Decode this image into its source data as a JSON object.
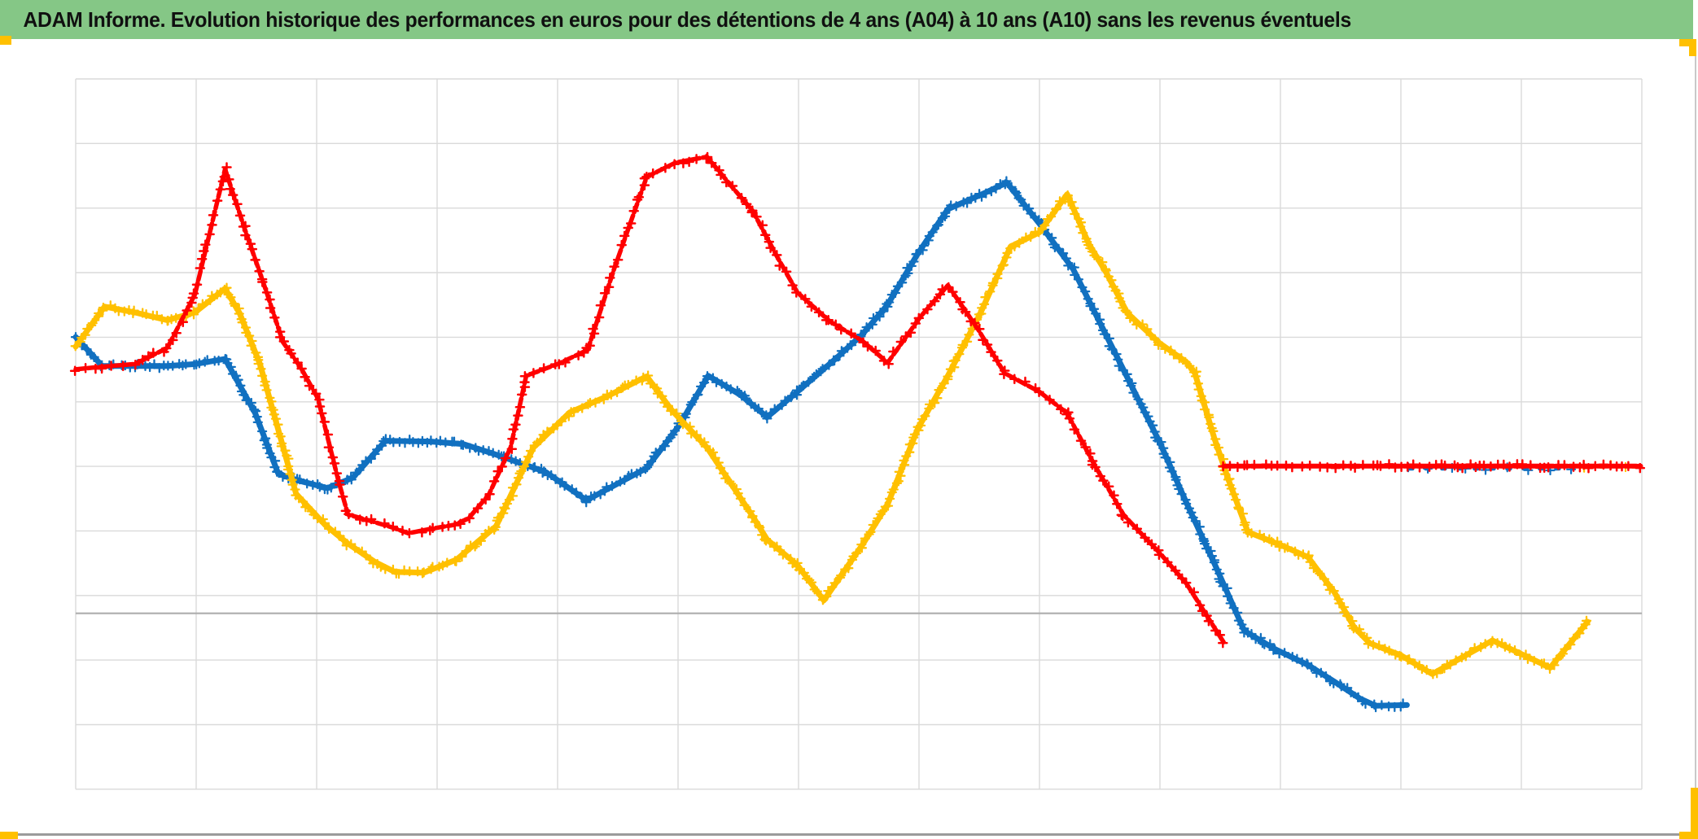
{
  "header": {
    "title": "ADAM Informe. Evolution historique des performances en euros pour des détentions de 4 ans (A04) à 10 ans (A10) sans les revenus éventuels"
  },
  "colors": {
    "title_bar_bg": "#85C786",
    "title_text": "#101010",
    "gridline": "#DADADA",
    "axis_line": "#ADADAD",
    "chart_border_right": "#C9C9C9",
    "chart_border_bottom": "#9B9B9B",
    "selection_handle": "#FFC000",
    "series_red": "#FF0000",
    "series_blue": "#1170C0",
    "series_yellow": "#FFC000"
  },
  "chart_data": {
    "type": "line",
    "title": "ADAM Informe. Evolution historique des performances en euros pour des détentions de 4 ans (A04) à 10 ans (A10) sans les revenus éventuels",
    "legend_visible": false,
    "x_axis": {
      "label": "",
      "tick_labels": "none visible",
      "gridline_intervals": 13
    },
    "y_axis": {
      "label": "",
      "tick_labels": "none visible",
      "gridline_intervals": 11,
      "axis_reference_line": "darker horizontal line (y = 0) located between the 8th and 9th gridlines from the top"
    },
    "units_note": "No numeric labels are visible. x = vertical-gridline index (0 to 13 across the plot). y = number of horizontal gridline steps above the darker axis reference line (axis line = 0, one gridline row = 1).",
    "marker_style": "dense '+' cross markers forming thick textured lines",
    "series": [
      {
        "id": "blue",
        "label": "courbe bleue",
        "color": "#1170C0",
        "marker": "plus",
        "segments": [
          {
            "style": "solid",
            "points": [
              [
                0,
                4.28
              ],
              [
                0.22,
                3.83
              ],
              [
                0.76,
                3.83
              ],
              [
                0.99,
                3.86
              ],
              [
                1.24,
                3.94
              ],
              [
                1.49,
                3.1
              ],
              [
                1.68,
                2.17
              ],
              [
                1.8,
                2.08
              ],
              [
                2.09,
                1.94
              ],
              [
                2.3,
                2.1
              ],
              [
                2.57,
                2.67
              ],
              [
                2.95,
                2.66
              ],
              [
                3.22,
                2.62
              ],
              [
                3.47,
                2.47
              ],
              [
                3.9,
                2.19
              ],
              [
                4.24,
                1.75
              ],
              [
                4.74,
                2.25
              ],
              [
                5.01,
                2.91
              ],
              [
                5.25,
                3.68
              ],
              [
                5.52,
                3.38
              ],
              [
                5.74,
                3.04
              ],
              [
                5.99,
                3.43
              ],
              [
                6.3,
                3.93
              ],
              [
                6.53,
                4.32
              ],
              [
                6.74,
                4.78
              ],
              [
                6.99,
                5.57
              ],
              [
                7.24,
                6.26
              ],
              [
                7.51,
                6.48
              ],
              [
                7.73,
                6.67
              ],
              [
                8.01,
                6.01
              ],
              [
                8.28,
                5.33
              ],
              [
                8.77,
                3.5
              ],
              [
                9.0,
                2.64
              ],
              [
                9.22,
                1.71
              ],
              [
                9.45,
                0.78
              ],
              [
                9.7,
                -0.27
              ],
              [
                9.95,
                -0.55
              ],
              [
                10.23,
                -0.8
              ],
              [
                10.45,
                -1.06
              ],
              [
                10.66,
                -1.32
              ],
              [
                10.79,
                -1.43
              ],
              [
                11.05,
                -1.42
              ]
            ]
          },
          {
            "style": "sparse",
            "points": [
              [
                11.07,
                2.24
              ],
              [
                12.43,
                2.24
              ]
            ]
          }
        ]
      },
      {
        "id": "yellow",
        "label": "courbe jaune",
        "color": "#FFC000",
        "marker": "plus",
        "segments": [
          {
            "style": "solid",
            "points": [
              [
                0,
                4.13
              ],
              [
                0.24,
                4.75
              ],
              [
                0.49,
                4.66
              ],
              [
                0.76,
                4.54
              ],
              [
                0.99,
                4.66
              ],
              [
                1.24,
                5.03
              ],
              [
                1.36,
                4.65
              ],
              [
                1.53,
                3.86
              ],
              [
                1.83,
                1.85
              ],
              [
                2.07,
                1.37
              ],
              [
                2.26,
                1.08
              ],
              [
                2.48,
                0.8
              ],
              [
                2.65,
                0.64
              ],
              [
                2.89,
                0.63
              ],
              [
                3.16,
                0.83
              ],
              [
                3.49,
                1.35
              ],
              [
                3.8,
                2.57
              ],
              [
                4.1,
                3.11
              ],
              [
                4.41,
                3.36
              ],
              [
                4.74,
                3.67
              ],
              [
                4.95,
                3.14
              ],
              [
                5.24,
                2.57
              ],
              [
                5.62,
                1.5
              ],
              [
                5.74,
                1.14
              ],
              [
                5.99,
                0.75
              ],
              [
                6.21,
                0.2
              ],
              [
                6.53,
                1.06
              ],
              [
                6.74,
                1.69
              ],
              [
                6.99,
                2.86
              ],
              [
                7.24,
                3.68
              ],
              [
                7.51,
                4.65
              ],
              [
                7.76,
                5.68
              ],
              [
                8.0,
                5.9
              ],
              [
                8.23,
                6.49
              ],
              [
                8.41,
                5.72
              ],
              [
                8.55,
                5.29
              ],
              [
                8.73,
                4.65
              ],
              [
                9.0,
                4.18
              ],
              [
                9.22,
                3.89
              ],
              [
                9.29,
                3.72
              ],
              [
                9.45,
                2.72
              ],
              [
                9.57,
                2.06
              ],
              [
                9.73,
                1.26
              ],
              [
                10.0,
                1.06
              ],
              [
                10.23,
                0.87
              ],
              [
                10.45,
                0.32
              ],
              [
                10.61,
                -0.21
              ],
              [
                10.74,
                -0.46
              ],
              [
                11.0,
                -0.65
              ],
              [
                11.26,
                -0.94
              ],
              [
                11.76,
                -0.42
              ],
              [
                12.24,
                -0.84
              ],
              [
                12.55,
                -0.13
              ]
            ]
          },
          {
            "style": "sparse",
            "points": [
              [
                12.52,
                2.27
              ],
              [
                12.99,
                2.27
              ]
            ]
          }
        ]
      },
      {
        "id": "red",
        "label": "courbe rouge",
        "color": "#FF0000",
        "marker": "plus",
        "segments": [
          {
            "style": "dashed",
            "points": [
              [
                0,
                3.78
              ],
              [
                0.22,
                3.82
              ],
              [
                0.49,
                3.86
              ],
              [
                0.76,
                4.11
              ],
              [
                0.99,
                4.94
              ],
              [
                1.24,
                6.88
              ],
              [
                1.4,
                5.97
              ],
              [
                1.58,
                5.0
              ],
              [
                1.72,
                4.2
              ],
              [
                1.87,
                3.8
              ],
              [
                2.01,
                3.33
              ],
              [
                2.18,
                2.06
              ],
              [
                2.26,
                1.53
              ],
              [
                2.45,
                1.43
              ],
              [
                2.63,
                1.33
              ],
              [
                2.76,
                1.24
              ],
              [
                2.95,
                1.31
              ],
              [
                3.14,
                1.37
              ],
              [
                3.26,
                1.47
              ],
              [
                3.43,
                1.84
              ],
              [
                3.61,
                2.57
              ],
              [
                3.74,
                3.68
              ],
              [
                4.0,
                3.86
              ],
              [
                4.25,
                4.08
              ],
              [
                4.47,
                5.34
              ],
              [
                4.74,
                6.76
              ],
              [
                4.98,
                6.98
              ],
              [
                5.24,
                7.07
              ],
              [
                5.45,
                6.6
              ],
              [
                5.62,
                6.23
              ],
              [
                5.82,
                5.53
              ],
              [
                5.99,
                4.97
              ],
              [
                6.26,
                4.52
              ],
              [
                6.53,
                4.22
              ],
              [
                6.74,
                3.88
              ],
              [
                7.01,
                4.59
              ],
              [
                7.24,
                5.08
              ],
              [
                7.49,
                4.4
              ],
              [
                7.71,
                3.72
              ],
              [
                8.0,
                3.43
              ],
              [
                8.23,
                3.1
              ],
              [
                8.45,
                2.32
              ],
              [
                8.7,
                1.52
              ],
              [
                9.0,
                0.93
              ],
              [
                9.22,
                0.46
              ],
              [
                9.54,
                -0.48
              ]
            ]
          },
          {
            "style": "dense",
            "points": [
              [
                9.53,
                2.28
              ],
              [
                12.99,
                2.28
              ]
            ]
          }
        ]
      }
    ]
  }
}
